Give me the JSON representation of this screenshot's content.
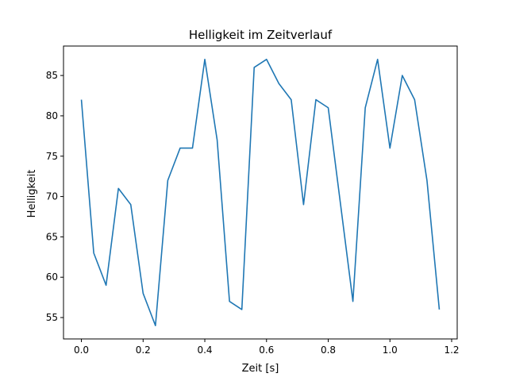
{
  "chart_data": {
    "type": "line",
    "title": "Helligkeit im Zeitverlauf",
    "xlabel": "Zeit [s]",
    "ylabel": "Helligkeit",
    "xlim": [
      -0.058,
      1.218
    ],
    "ylim": [
      52.35,
      88.65
    ],
    "xticks": [
      0.0,
      0.2,
      0.4,
      0.6,
      0.8,
      1.0,
      1.2
    ],
    "yticks": [
      55,
      60,
      65,
      70,
      75,
      80,
      85
    ],
    "grid": false,
    "series": [
      {
        "color": "#1f77b4",
        "x": [
          0.0,
          0.04,
          0.08,
          0.12,
          0.16,
          0.2,
          0.24,
          0.28,
          0.32,
          0.36,
          0.4,
          0.44,
          0.48,
          0.52,
          0.56,
          0.6,
          0.64,
          0.68,
          0.72,
          0.76,
          0.8,
          0.84,
          0.88,
          0.92,
          0.96,
          1.0,
          1.04,
          1.08,
          1.12,
          1.16
        ],
        "y": [
          82,
          63,
          59,
          71,
          69,
          58,
          54,
          72,
          76,
          76,
          87,
          77,
          57,
          56,
          86,
          87,
          84,
          82,
          69,
          82,
          81,
          69,
          57,
          81,
          87,
          76,
          85,
          82,
          72,
          56
        ]
      }
    ]
  }
}
